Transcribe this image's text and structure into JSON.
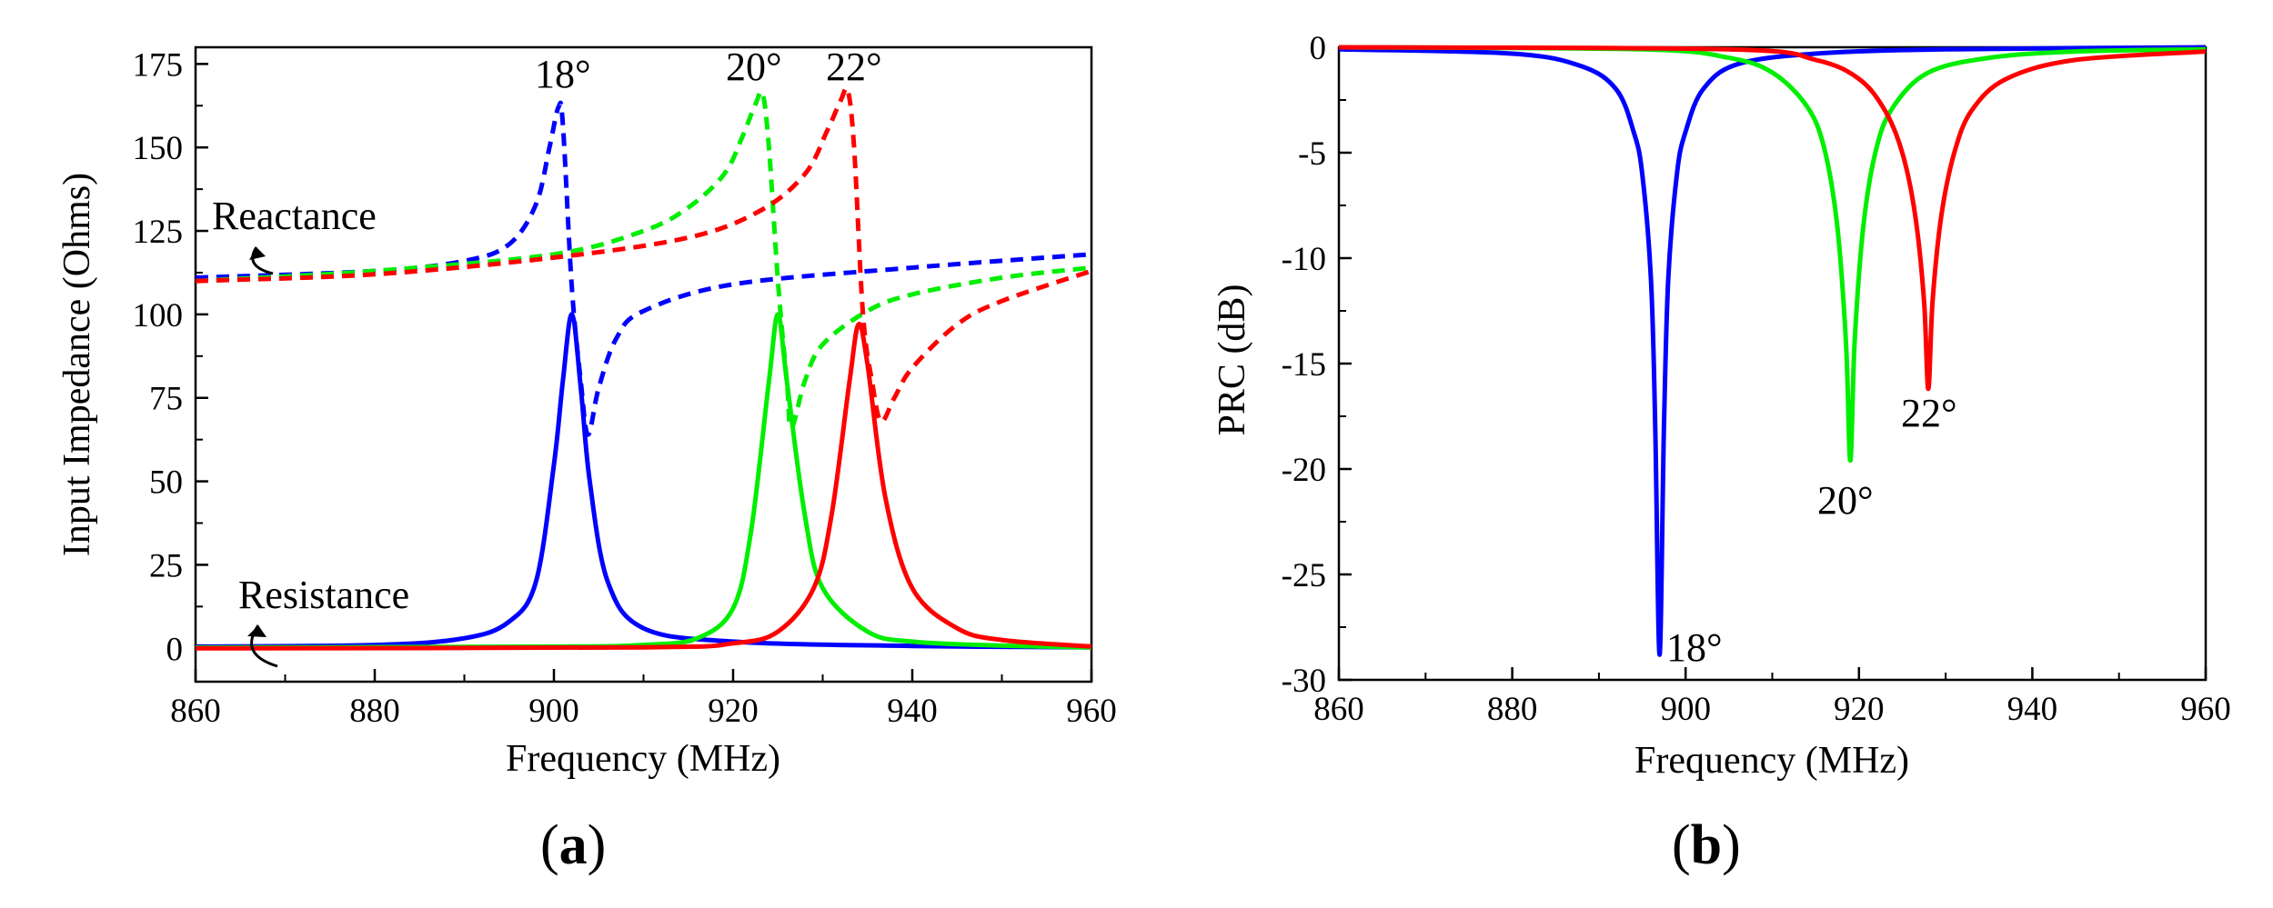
{
  "chart_data": [
    {
      "type": "line",
      "panel_label": "a",
      "xlabel": "Frequency (MHz)",
      "ylabel": "Input Impedance (Ohms)",
      "xlim": [
        860,
        960
      ],
      "ylim": [
        -10,
        180
      ],
      "x_ticks": [
        860,
        880,
        900,
        920,
        940,
        960
      ],
      "y_ticks": [
        0,
        25,
        50,
        75,
        100,
        125,
        150,
        175
      ],
      "colors": {
        "18°": "#0000ff",
        "20°": "#00ee00",
        "22°": "#ff0000"
      },
      "series": [
        {
          "name": "Resistance 18°",
          "color": "#0000ff",
          "style": "solid",
          "x": [
            860,
            880,
            890,
            895,
            898,
            900,
            901,
            902,
            903,
            904,
            906,
            910,
            920,
            940,
            960
          ],
          "y": [
            0.5,
            1,
            3,
            8,
            20,
            55,
            80,
            100,
            78,
            50,
            20,
            6,
            2,
            0.7,
            0.3
          ]
        },
        {
          "name": "Resistance 20°",
          "color": "#00ee00",
          "style": "solid",
          "x": [
            860,
            900,
            910,
            916,
            920,
            922,
            924,
            925,
            926,
            928,
            930,
            935,
            940,
            950,
            960
          ],
          "y": [
            0.2,
            0.5,
            1,
            3,
            12,
            35,
            80,
            100,
            80,
            40,
            18,
            5,
            2,
            0.8,
            0.3
          ]
        },
        {
          "name": "Resistance 22°",
          "color": "#ff0000",
          "style": "solid",
          "x": [
            860,
            910,
            920,
            925,
            929,
            931,
            933,
            934,
            935,
            937,
            940,
            945,
            950,
            960
          ],
          "y": [
            0,
            0.3,
            1.5,
            5,
            18,
            40,
            80,
            97,
            85,
            45,
            18,
            6,
            2.5,
            0.5
          ]
        },
        {
          "name": "Reactance 18°",
          "color": "#0000ff",
          "style": "dashed",
          "x": [
            860,
            880,
            890,
            895,
            898,
            899.5,
            900.5,
            901,
            902,
            903,
            903.8,
            905,
            907,
            910,
            920,
            940,
            960
          ],
          "y": [
            111,
            113,
            116,
            121,
            133,
            150,
            162,
            157,
            108,
            80,
            64,
            78,
            93,
            101,
            109,
            114,
            118
          ]
        },
        {
          "name": "Reactance 20°",
          "color": "#00ee00",
          "style": "dashed",
          "x": [
            860,
            880,
            900,
            910,
            915,
            919,
            921,
            922.5,
            923.3,
            924,
            925,
            926,
            926.5,
            928,
            930,
            935,
            940,
            950,
            960
          ],
          "y": [
            110,
            113,
            118,
            125,
            132,
            142,
            153,
            163,
            166,
            150,
            110,
            80,
            66,
            80,
            91,
            101,
            106,
            111,
            114
          ]
        },
        {
          "name": "Reactance 22°",
          "color": "#ff0000",
          "style": "dashed",
          "x": [
            860,
            880,
            900,
            915,
            923,
            928,
            930.5,
            932,
            932.8,
            933.5,
            934.5,
            935.5,
            936.5,
            938,
            940,
            945,
            950,
            960
          ],
          "y": [
            110,
            112,
            117,
            123,
            131,
            142,
            155,
            164,
            167,
            150,
            100,
            80,
            68,
            75,
            84,
            97,
            104,
            113
          ]
        }
      ],
      "annotations": {
        "reactance": "Reactance",
        "resistance": "Resistance",
        "peak_18": "18°",
        "peak_20": "20°",
        "peak_22": "22°"
      }
    },
    {
      "type": "line",
      "panel_label": "b",
      "xlabel": "Frequency (MHz)",
      "ylabel": "PRC (dB)",
      "xlim": [
        860,
        960
      ],
      "ylim": [
        -30,
        0
      ],
      "x_ticks": [
        860,
        880,
        900,
        920,
        940,
        960
      ],
      "y_ticks": [
        0,
        -5,
        -10,
        -15,
        -20,
        -25,
        -30
      ],
      "series": [
        {
          "name": "18°",
          "color": "#0000ff",
          "style": "solid",
          "x": [
            860,
            880,
            888,
            892,
            894,
            895,
            896,
            896.5,
            897,
            897.5,
            898,
            899,
            900,
            902,
            906,
            915,
            930,
            960
          ],
          "y": [
            -0.1,
            -0.3,
            -0.9,
            -2,
            -4,
            -6,
            -11,
            -18,
            -28.8,
            -18,
            -11,
            -6,
            -4,
            -2,
            -0.8,
            -0.3,
            -0.1,
            0
          ]
        },
        {
          "name": "20°",
          "color": "#00ee00",
          "style": "solid",
          "x": [
            860,
            895,
            905,
            910,
            914,
            916,
            917.5,
            918.5,
            919,
            919.5,
            920.5,
            922,
            924,
            928,
            935,
            945,
            960
          ],
          "y": [
            0,
            -0.1,
            -0.5,
            -1.2,
            -2.8,
            -4.8,
            -8.5,
            -14,
            -19.6,
            -14,
            -8.5,
            -4.8,
            -2.8,
            -1.2,
            -0.5,
            -0.2,
            -0.1
          ]
        },
        {
          "name": "22°",
          "color": "#ff0000",
          "style": "solid",
          "x": [
            860,
            905,
            915,
            920,
            923,
            925,
            926.5,
            927.5,
            928,
            928.5,
            929.5,
            931,
            933,
            937,
            945,
            960
          ],
          "y": [
            0,
            -0.1,
            -0.6,
            -1.5,
            -3,
            -5,
            -8,
            -12,
            -16.2,
            -12,
            -8,
            -5,
            -3,
            -1.5,
            -0.6,
            -0.2
          ]
        }
      ],
      "annotations": {
        "dip_18": "18°",
        "dip_20": "20°",
        "dip_22": "22°"
      }
    }
  ]
}
